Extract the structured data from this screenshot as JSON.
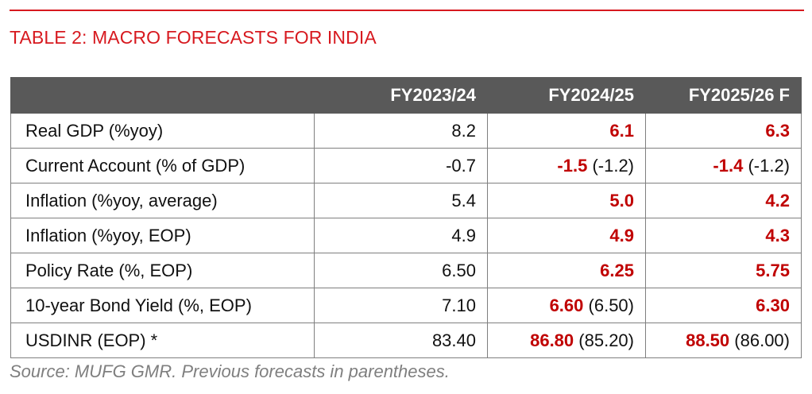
{
  "title": "TABLE 2: MACRO FORECASTS FOR INDIA",
  "colors": {
    "accent": "#d7191f",
    "header_bg": "#595959",
    "forecast": "#c00000"
  },
  "table": {
    "headers": [
      "",
      "FY2023/24",
      "FY2024/25",
      "FY2025/26 F"
    ],
    "rows": [
      {
        "label": "Real GDP (%yoy)",
        "fy2324": "8.2",
        "fy2425": "6.1",
        "fy2425_prev": "",
        "fy2526": "6.3",
        "fy2526_prev": ""
      },
      {
        "label": "Current Account (% of GDP)",
        "fy2324": "-0.7",
        "fy2425": "-1.5",
        "fy2425_prev": "(-1.2)",
        "fy2526": "-1.4",
        "fy2526_prev": "(-1.2)"
      },
      {
        "label": "Inflation (%yoy, average)",
        "fy2324": "5.4",
        "fy2425": "5.0",
        "fy2425_prev": "",
        "fy2526": "4.2",
        "fy2526_prev": ""
      },
      {
        "label": "Inflation (%yoy, EOP)",
        "fy2324": "4.9",
        "fy2425": "4.9",
        "fy2425_prev": "",
        "fy2526": "4.3",
        "fy2526_prev": ""
      },
      {
        "label": "Policy Rate (%, EOP)",
        "fy2324": "6.50",
        "fy2425": "6.25",
        "fy2425_prev": "",
        "fy2526": "5.75",
        "fy2526_prev": ""
      },
      {
        "label": "10-year Bond Yield (%, EOP)",
        "fy2324": "7.10",
        "fy2425": "6.60",
        "fy2425_prev": "(6.50)",
        "fy2526": "6.30",
        "fy2526_prev": ""
      },
      {
        "label": "USDINR (EOP) *",
        "fy2324": "83.40",
        "fy2425": "86.80",
        "fy2425_prev": "(85.20)",
        "fy2526": "88.50",
        "fy2526_prev": "(86.00)"
      }
    ]
  },
  "source": "Source: MUFG GMR. Previous forecasts in parentheses."
}
